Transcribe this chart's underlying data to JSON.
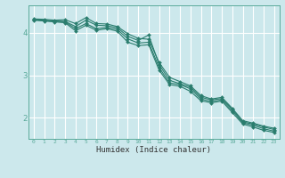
{
  "title": "",
  "xlabel": "Humidex (Indice chaleur)",
  "ylabel": "",
  "background_color": "#cce8ec",
  "grid_color": "#ffffff",
  "line_color": "#2a7d6e",
  "x": [
    0,
    1,
    2,
    3,
    4,
    5,
    6,
    7,
    8,
    9,
    10,
    11,
    12,
    13,
    14,
    15,
    16,
    17,
    18,
    19,
    20,
    21,
    22,
    23
  ],
  "lines": [
    [
      4.32,
      4.3,
      4.28,
      4.27,
      4.15,
      4.3,
      4.18,
      4.17,
      4.12,
      3.92,
      3.82,
      3.95,
      3.25,
      2.88,
      2.8,
      2.72,
      2.48,
      2.42,
      2.45,
      2.2,
      1.9,
      1.85,
      1.78,
      1.72
    ],
    [
      4.33,
      4.32,
      4.3,
      4.31,
      4.22,
      4.36,
      4.22,
      4.21,
      4.15,
      3.98,
      3.87,
      3.85,
      3.3,
      2.95,
      2.85,
      2.75,
      2.52,
      2.44,
      2.48,
      2.22,
      1.93,
      1.87,
      1.8,
      1.75
    ],
    [
      4.31,
      4.29,
      4.27,
      4.26,
      4.1,
      4.22,
      4.1,
      4.13,
      4.08,
      3.86,
      3.76,
      3.78,
      3.18,
      2.82,
      2.78,
      2.68,
      2.44,
      2.38,
      2.42,
      2.16,
      1.88,
      1.82,
      1.74,
      1.68
    ],
    [
      4.3,
      4.28,
      4.26,
      4.24,
      4.05,
      4.18,
      4.06,
      4.1,
      4.04,
      3.78,
      3.7,
      3.72,
      3.12,
      2.78,
      2.74,
      2.62,
      2.4,
      2.35,
      2.39,
      2.12,
      1.85,
      1.78,
      1.7,
      1.65
    ]
  ],
  "ylim": [
    1.5,
    4.65
  ],
  "xlim": [
    -0.5,
    23.5
  ],
  "yticks": [
    2,
    3,
    4
  ],
  "figsize": [
    3.2,
    2.0
  ],
  "dpi": 100
}
